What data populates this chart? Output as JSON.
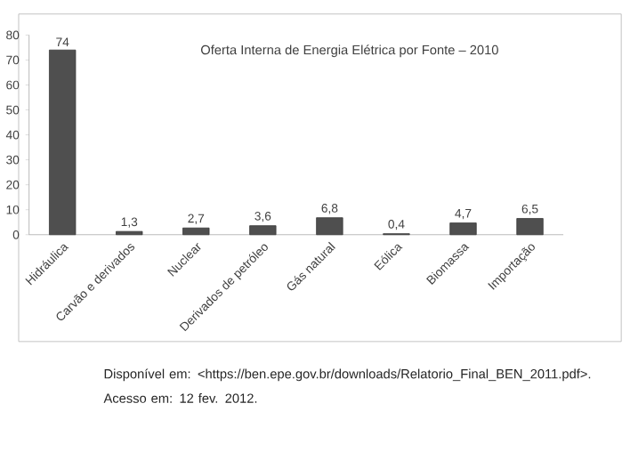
{
  "chart_data": {
    "type": "bar",
    "title": "Oferta Interna de Energia Elétrica por Fonte – 2010",
    "categories": [
      "Hidráulica",
      "Carvão e derivados",
      "Nuclear",
      "Derivados de petróleo",
      "Gás natural",
      "Eólica",
      "Biomassa",
      "Importação"
    ],
    "values": [
      74,
      1.3,
      2.7,
      3.6,
      6.8,
      0.4,
      4.7,
      6.5
    ],
    "value_labels": [
      "74",
      "1,3",
      "2,7",
      "3,6",
      "6,8",
      "0,4",
      "4,7",
      "6,5"
    ],
    "color": "#4f4f4f",
    "ylim": [
      0,
      80
    ],
    "yticks": [
      0,
      10,
      20,
      30,
      40,
      50,
      60,
      70,
      80
    ],
    "annotations": [
      "Disponível em: <https://ben.epe.gov.br/downloads/Relatorio_Final_BEN_2011.pdf>. Acesso em: 12 fev. 2012."
    ]
  }
}
